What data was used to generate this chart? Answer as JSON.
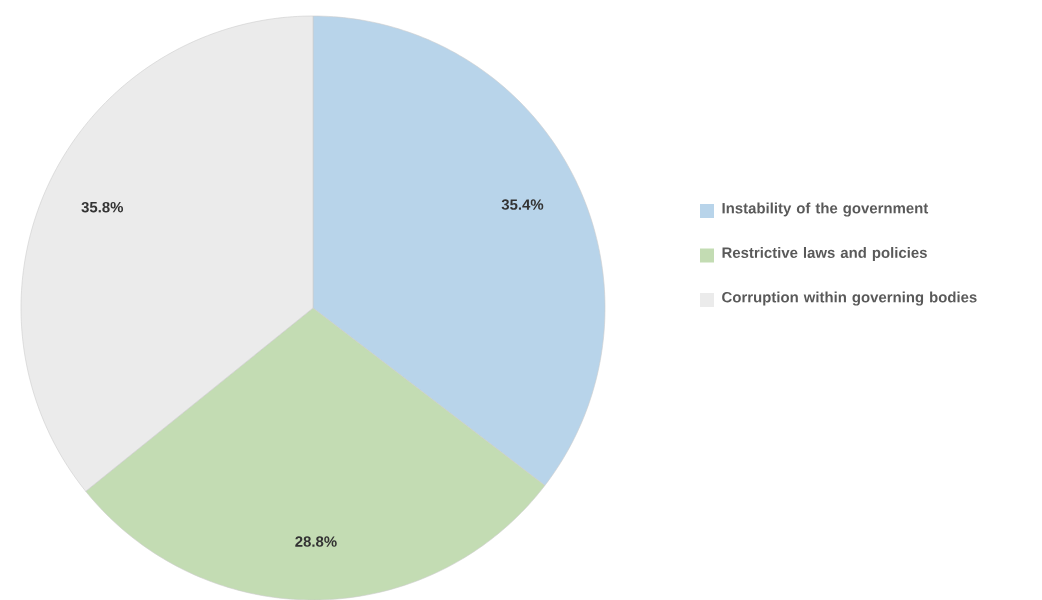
{
  "chart_data": {
    "type": "pie",
    "categories": [
      "Instability of the government",
      "Restrictive laws and policies",
      "Corruption within governing bodies"
    ],
    "values": [
      35.4,
      28.8,
      35.8
    ],
    "colors": [
      "#b8d4ea",
      "#c3dcb3",
      "#ebebeb"
    ],
    "value_labels": [
      "35.4%",
      "28.8%",
      "35.8%"
    ],
    "legend": "right"
  }
}
